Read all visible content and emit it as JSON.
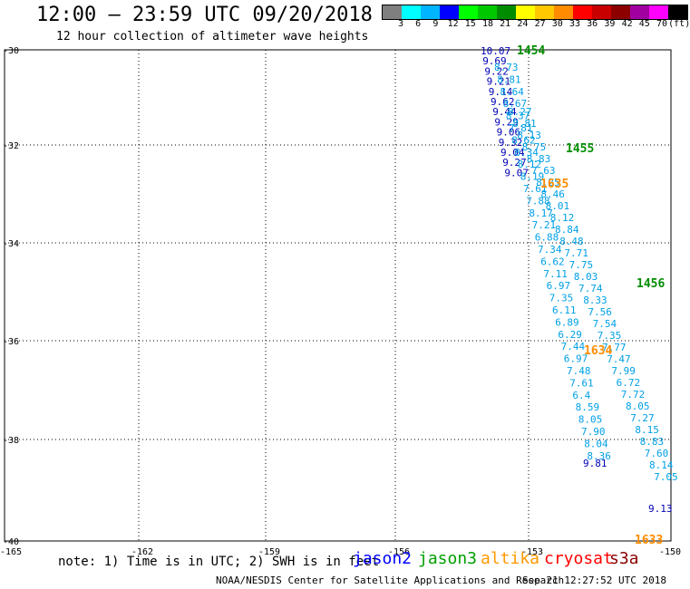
{
  "header": {
    "title": "12:00 – 23:59 UTC 09/20/2018",
    "subtitle": "12 hour collection of altimeter wave heights"
  },
  "colorbar": {
    "colors": [
      "#7f7f7f",
      "#00ffff",
      "#00b4ff",
      "#0000ff",
      "#00ff00",
      "#00c800",
      "#008c00",
      "#ffff00",
      "#ffc800",
      "#ff8c00",
      "#ff0000",
      "#c80000",
      "#8c0000",
      "#a000a0",
      "#ff00ff",
      "#000000"
    ],
    "labels": [
      "3",
      "6",
      "9",
      "12",
      "15",
      "18",
      "21",
      "24",
      "27",
      "30",
      "33",
      "36",
      "39",
      "42",
      "45",
      "70",
      "(ft)"
    ]
  },
  "axes": {
    "lat_labels": [
      "-30",
      "-32",
      "-34",
      "-36",
      "-38",
      "-40"
    ],
    "lon_labels": [
      "-165",
      "-162",
      "-159",
      "-156",
      "-153",
      "-150"
    ]
  },
  "track_a_dark": [
    "10.07",
    "9.69",
    "9.22",
    "9.21",
    "9.14",
    "9.62",
    "9.44",
    "9.29",
    "9.06",
    "9.32",
    "9.04",
    "9.27",
    "9.07"
  ],
  "track_a_light": [
    "8.73",
    "8.27",
    "8.81",
    "8.81",
    "8.64",
    "8.13",
    "8.67",
    "8.75",
    "8.37",
    "8.83",
    "7.81",
    "7.63",
    "8.62",
    "8.25",
    "8.34",
    "8.46",
    "8.12",
    "8.01",
    "8.19",
    "8.12",
    "7.61",
    "8.84",
    "7.88",
    "8.48",
    "8.17",
    "7.71",
    "7.21",
    "7.75",
    "6.88",
    "8.03",
    "7.34",
    "7.74",
    "6.62",
    "8.33",
    "7.11",
    "7.56",
    "6.97",
    "7.54",
    "7.35",
    "7.35",
    "6.11",
    "7.77",
    "6.89",
    "7.47",
    "6.29",
    "7.99",
    "7.44",
    "6.72",
    "6.97",
    "7.72",
    "7.48",
    "8.05",
    "7.61",
    "7.27",
    "6.4",
    "8.15",
    "8.59",
    "8.83",
    "8.05",
    "7.60",
    "7.90",
    "8.14",
    "8.04",
    "7.05",
    "8.36"
  ],
  "track_dark_extra": [
    "9.81",
    "9.13"
  ],
  "time_labels_green": [
    "1454",
    "1455",
    "1456"
  ],
  "time_labels_orange": [
    "1635",
    "1634",
    "1633"
  ],
  "footer": {
    "note": "note: 1) Time is in UTC; 2) SWH is in feet",
    "legend": [
      {
        "name": "jason2",
        "color": "#0000ff"
      },
      {
        "name": "jason3",
        "color": "#00a000"
      },
      {
        "name": "altika",
        "color": "#ff9900"
      },
      {
        "name": "cryosat",
        "color": "#ff0000"
      },
      {
        "name": "s3a",
        "color": "#8b0000"
      }
    ],
    "credit": "NOAA/NESDIS Center for Satellite Applications and Research",
    "stamp": "Sep 21 12:27:52 UTC 2018"
  }
}
